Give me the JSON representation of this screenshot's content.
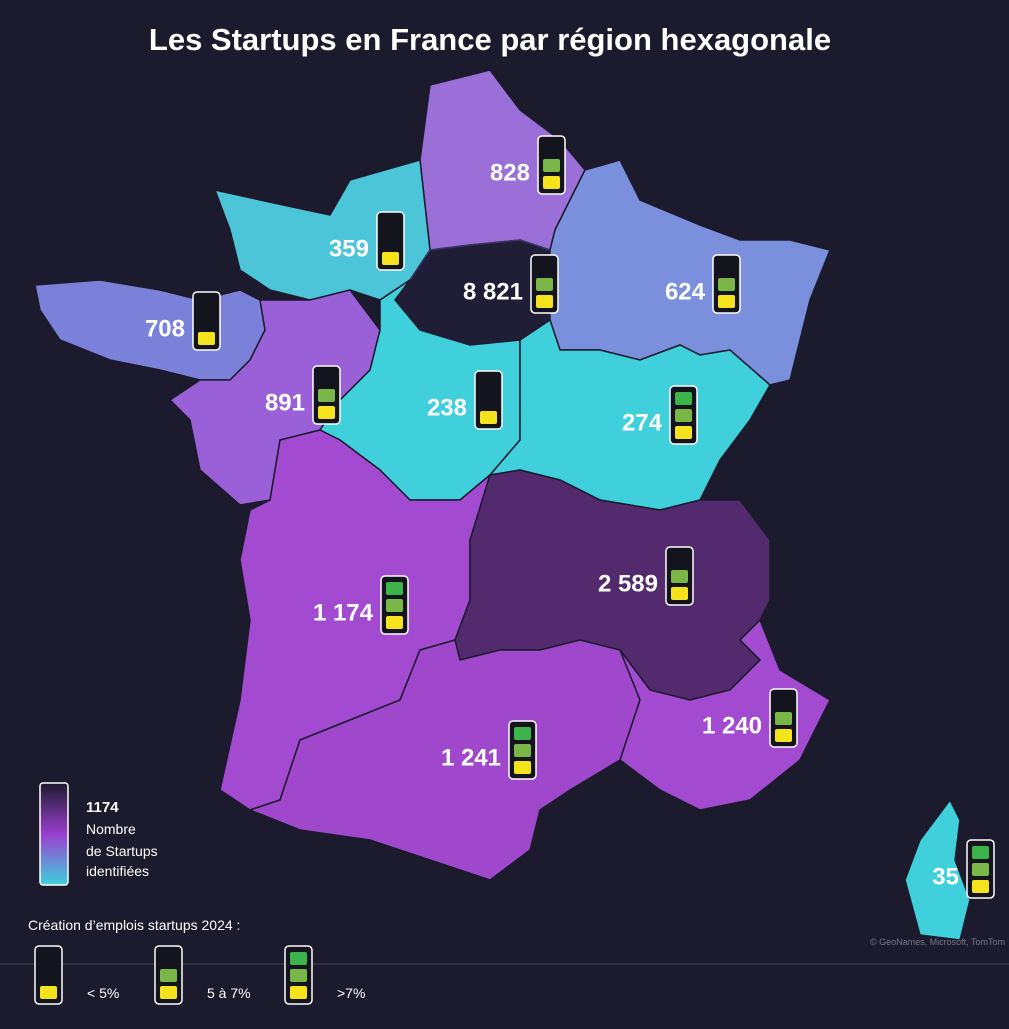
{
  "header": {
    "title": "Les Startups en France par région hexagonale"
  },
  "regions": [
    {
      "label": "828",
      "level": 2
    },
    {
      "label": "359",
      "level": 1
    },
    {
      "label": "8 821",
      "level": 2
    },
    {
      "label": "624",
      "level": 2
    },
    {
      "label": "708",
      "level": 1
    },
    {
      "label": "891",
      "level": 2
    },
    {
      "label": "238",
      "level": 1
    },
    {
      "label": "274",
      "level": 3
    },
    {
      "label": "2 589",
      "level": 2
    },
    {
      "label": "1 174",
      "level": 3
    },
    {
      "label": "1 241",
      "level": 3
    },
    {
      "label": "1 240",
      "level": 2
    },
    {
      "label": "35",
      "level": 3
    }
  ],
  "legend": {
    "value": "1174",
    "lines": [
      "Nombre",
      "de Startups",
      "identifiées"
    ],
    "jobs_title": "Création d’emplois startups 2024 :",
    "jobs_items": [
      {
        "label": "< 5%",
        "level": 1
      },
      {
        "label": "5 à 7%",
        "level": 2
      },
      {
        "label": ">7%",
        "level": 3
      }
    ]
  },
  "attribution": "© GeoNames, Microsoft, TomTom"
}
